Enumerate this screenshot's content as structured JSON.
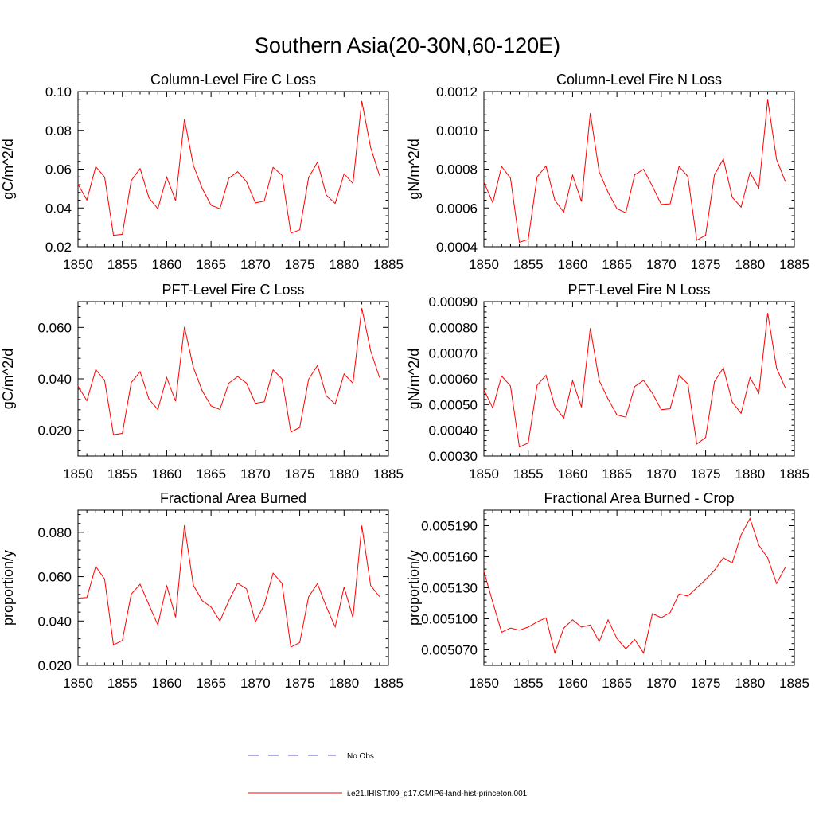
{
  "title": "Southern Asia(20-30N,60-120E)",
  "colors": {
    "model_line": "#ff0000",
    "obs_line": "#5b5bd6",
    "axis": "#000000"
  },
  "legend": {
    "obs_label": "No Obs",
    "model_label": "i.e21.IHIST.f09_g17.CMIP6-land-hist-princeton.001"
  },
  "chart_data": [
    {
      "type": "line",
      "title": "Column-Level Fire C Loss",
      "ylabel": "gC/m^2/d",
      "xlim": [
        1850,
        1885
      ],
      "ylim": [
        0.02,
        0.1
      ],
      "xticks": [
        "1850",
        "1855",
        "1860",
        "1865",
        "1870",
        "1875",
        "1880",
        "1885"
      ],
      "yticks": [
        {
          "v": 0.02,
          "label": "0.02"
        },
        {
          "v": 0.04,
          "label": "0.04"
        },
        {
          "v": 0.06,
          "label": "0.06"
        },
        {
          "v": 0.08,
          "label": "0.08"
        },
        {
          "v": 0.1,
          "label": "0.10"
        }
      ],
      "x": [
        1850,
        1851,
        1852,
        1853,
        1854,
        1855,
        1856,
        1857,
        1858,
        1859,
        1860,
        1861,
        1862,
        1863,
        1864,
        1865,
        1866,
        1867,
        1868,
        1869,
        1870,
        1871,
        1872,
        1873,
        1874,
        1875,
        1876,
        1877,
        1878,
        1879,
        1880,
        1881,
        1882,
        1883,
        1884
      ],
      "values": [
        0.0522,
        0.0441,
        0.0613,
        0.0559,
        0.0259,
        0.0264,
        0.0541,
        0.0603,
        0.0452,
        0.0396,
        0.0559,
        0.0438,
        0.0858,
        0.0621,
        0.0501,
        0.0414,
        0.0396,
        0.0553,
        0.0587,
        0.0535,
        0.0426,
        0.0435,
        0.0609,
        0.0568,
        0.027,
        0.0287,
        0.0556,
        0.0636,
        0.0466,
        0.0423,
        0.0576,
        0.0526,
        0.0951,
        0.0711,
        0.0567
      ]
    },
    {
      "type": "line",
      "title": "Column-Level Fire N Loss",
      "ylabel": "gN/m^2/d",
      "xlim": [
        1850,
        1885
      ],
      "ylim": [
        0.0004,
        0.0012
      ],
      "xticks": [
        "1850",
        "1855",
        "1860",
        "1865",
        "1870",
        "1875",
        "1880",
        "1885"
      ],
      "yticks": [
        {
          "v": 0.0004,
          "label": "0.0004"
        },
        {
          "v": 0.0006,
          "label": "0.0006"
        },
        {
          "v": 0.0008,
          "label": "0.0008"
        },
        {
          "v": 0.001,
          "label": "0.0010"
        },
        {
          "v": 0.0012,
          "label": "0.0012"
        }
      ],
      "x": [
        1850,
        1851,
        1852,
        1853,
        1854,
        1855,
        1856,
        1857,
        1858,
        1859,
        1860,
        1861,
        1862,
        1863,
        1864,
        1865,
        1866,
        1867,
        1868,
        1869,
        1870,
        1871,
        1872,
        1873,
        1874,
        1875,
        1876,
        1877,
        1878,
        1879,
        1880,
        1881,
        1882,
        1883,
        1884
      ],
      "values": [
        0.000733,
        0.000627,
        0.000814,
        0.000753,
        0.000423,
        0.000437,
        0.00076,
        0.000816,
        0.00064,
        0.000578,
        0.000769,
        0.000633,
        0.001089,
        0.000786,
        0.000681,
        0.000596,
        0.000575,
        0.000771,
        0.000799,
        0.000712,
        0.000618,
        0.000621,
        0.000814,
        0.000762,
        0.000433,
        0.00046,
        0.000771,
        0.000853,
        0.000655,
        0.000604,
        0.000783,
        0.000701,
        0.001158,
        0.00085,
        0.000735
      ]
    },
    {
      "type": "line",
      "title": "PFT-Level Fire C Loss",
      "ylabel": "gC/m^2/d",
      "xlim": [
        1850,
        1885
      ],
      "ylim": [
        0.01,
        0.07
      ],
      "xticks": [
        "1850",
        "1855",
        "1860",
        "1865",
        "1870",
        "1875",
        "1880",
        "1885"
      ],
      "yticks": [
        {
          "v": 0.02,
          "label": "0.020"
        },
        {
          "v": 0.04,
          "label": "0.040"
        },
        {
          "v": 0.06,
          "label": "0.060"
        }
      ],
      "x": [
        1850,
        1851,
        1852,
        1853,
        1854,
        1855,
        1856,
        1857,
        1858,
        1859,
        1860,
        1861,
        1862,
        1863,
        1864,
        1865,
        1866,
        1867,
        1868,
        1869,
        1870,
        1871,
        1872,
        1873,
        1874,
        1875,
        1876,
        1877,
        1878,
        1879,
        1880,
        1881,
        1882,
        1883,
        1884
      ],
      "values": [
        0.0372,
        0.0315,
        0.0436,
        0.0394,
        0.0183,
        0.0188,
        0.0385,
        0.0428,
        0.0321,
        0.0281,
        0.0405,
        0.0313,
        0.0602,
        0.0445,
        0.0354,
        0.0295,
        0.0281,
        0.0383,
        0.0409,
        0.0383,
        0.0305,
        0.0311,
        0.0435,
        0.04,
        0.0193,
        0.0211,
        0.0398,
        0.0452,
        0.0334,
        0.0302,
        0.0419,
        0.0383,
        0.0675,
        0.0509,
        0.0405
      ]
    },
    {
      "type": "line",
      "title": "PFT-Level Fire N Loss",
      "ylabel": "gN/m^2/d",
      "xlim": [
        1850,
        1885
      ],
      "ylim": [
        0.0003,
        0.0009
      ],
      "xticks": [
        "1850",
        "1855",
        "1860",
        "1865",
        "1870",
        "1875",
        "1880",
        "1885"
      ],
      "yticks": [
        {
          "v": 0.0003,
          "label": "0.00030"
        },
        {
          "v": 0.0004,
          "label": "0.00040"
        },
        {
          "v": 0.0005,
          "label": "0.00050"
        },
        {
          "v": 0.0006,
          "label": "0.00060"
        },
        {
          "v": 0.0007,
          "label": "0.00070"
        },
        {
          "v": 0.0008,
          "label": "0.00080"
        },
        {
          "v": 0.0009,
          "label": "0.00090"
        }
      ],
      "x": [
        1850,
        1851,
        1852,
        1853,
        1854,
        1855,
        1856,
        1857,
        1858,
        1859,
        1860,
        1861,
        1862,
        1863,
        1864,
        1865,
        1866,
        1867,
        1868,
        1869,
        1870,
        1871,
        1872,
        1873,
        1874,
        1875,
        1876,
        1877,
        1878,
        1879,
        1880,
        1881,
        1882,
        1883,
        1884
      ],
      "values": [
        0.000557,
        0.000487,
        0.000611,
        0.000572,
        0.000335,
        0.000351,
        0.000575,
        0.000614,
        0.000494,
        0.000447,
        0.000593,
        0.00049,
        0.000797,
        0.000593,
        0.000522,
        0.00046,
        0.000451,
        0.00057,
        0.000594,
        0.000544,
        0.00048,
        0.000484,
        0.000614,
        0.00058,
        0.000347,
        0.000372,
        0.000589,
        0.000643,
        0.00051,
        0.000466,
        0.000605,
        0.000544,
        0.000856,
        0.000642,
        0.000564
      ]
    },
    {
      "type": "line",
      "title": "Fractional Area Burned",
      "ylabel": "proportion/y",
      "xlim": [
        1850,
        1885
      ],
      "ylim": [
        0.02,
        0.09
      ],
      "xticks": [
        "1850",
        "1855",
        "1860",
        "1865",
        "1870",
        "1875",
        "1880",
        "1885"
      ],
      "yticks": [
        {
          "v": 0.02,
          "label": "0.020"
        },
        {
          "v": 0.04,
          "label": "0.040"
        },
        {
          "v": 0.06,
          "label": "0.060"
        },
        {
          "v": 0.08,
          "label": "0.080"
        }
      ],
      "x": [
        1850,
        1851,
        1852,
        1853,
        1854,
        1855,
        1856,
        1857,
        1858,
        1859,
        1860,
        1861,
        1862,
        1863,
        1864,
        1865,
        1866,
        1867,
        1868,
        1869,
        1870,
        1871,
        1872,
        1873,
        1874,
        1875,
        1876,
        1877,
        1878,
        1879,
        1880,
        1881,
        1882,
        1883,
        1884
      ],
      "values": [
        0.0503,
        0.0506,
        0.0646,
        0.0589,
        0.0292,
        0.0312,
        0.0521,
        0.0566,
        0.0473,
        0.0382,
        0.0561,
        0.0417,
        0.0832,
        0.0562,
        0.0492,
        0.0463,
        0.04,
        0.0491,
        0.0571,
        0.0545,
        0.0396,
        0.0473,
        0.0616,
        0.057,
        0.0282,
        0.0303,
        0.0509,
        0.0569,
        0.0464,
        0.0373,
        0.0553,
        0.0415,
        0.083,
        0.056,
        0.051
      ]
    },
    {
      "type": "line",
      "title": "Fractional Area Burned - Crop",
      "ylabel": "proportion/y",
      "xlim": [
        1850,
        1885
      ],
      "ylim": [
        0.005055,
        0.005205
      ],
      "xticks": [
        "1850",
        "1855",
        "1860",
        "1865",
        "1870",
        "1875",
        "1880",
        "1885"
      ],
      "yticks": [
        {
          "v": 0.00507,
          "label": "0.005070"
        },
        {
          "v": 0.0051,
          "label": "0.005100"
        },
        {
          "v": 0.00513,
          "label": "0.005130"
        },
        {
          "v": 0.00516,
          "label": "0.005160"
        },
        {
          "v": 0.00519,
          "label": "0.005190"
        }
      ],
      "x": [
        1850,
        1851,
        1852,
        1853,
        1854,
        1855,
        1856,
        1857,
        1858,
        1859,
        1860,
        1861,
        1862,
        1863,
        1864,
        1865,
        1866,
        1867,
        1868,
        1869,
        1870,
        1871,
        1872,
        1873,
        1874,
        1875,
        1876,
        1877,
        1878,
        1879,
        1880,
        1881,
        1882,
        1883,
        1884
      ],
      "values": [
        0.005146,
        0.005116,
        0.005087,
        0.005091,
        0.005089,
        0.005092,
        0.005097,
        0.005101,
        0.005067,
        0.005091,
        0.005099,
        0.005092,
        0.005094,
        0.005078,
        0.005099,
        0.005081,
        0.005071,
        0.00508,
        0.005067,
        0.005105,
        0.005101,
        0.005106,
        0.005124,
        0.005122,
        0.00513,
        0.005138,
        0.005147,
        0.005159,
        0.005154,
        0.005181,
        0.005197,
        0.005171,
        0.005159,
        0.005134,
        0.00515
      ]
    }
  ]
}
